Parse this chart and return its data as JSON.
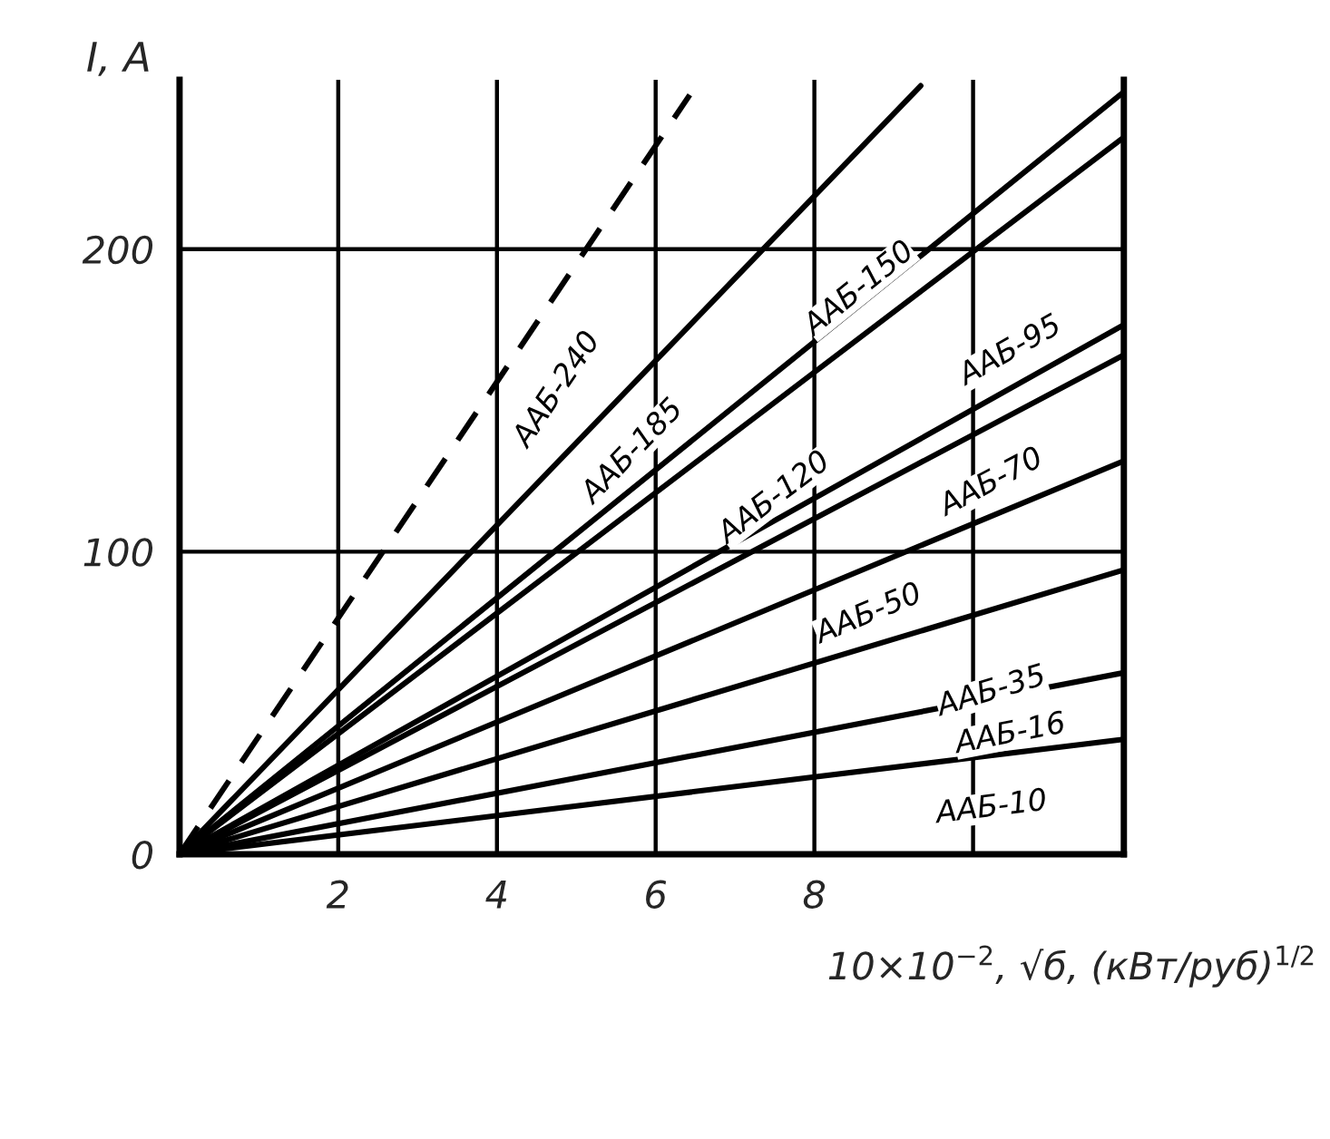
{
  "chart_data": {
    "type": "line",
    "xlabel": "10×10$^{−2}$, √б, (кВт/руб)$^{1/2}$",
    "ylabel": "I, A",
    "xlim": [
      0,
      11.9
    ],
    "ylim": [
      0,
      256
    ],
    "xticks": [
      2,
      4,
      6,
      8,
      {
        "value": 10,
        "label": null
      }
    ],
    "yticks": [
      0,
      100,
      200
    ],
    "grid": true,
    "legend": false,
    "marker": "none",
    "series": [
      {
        "name": "ААБ-240",
        "color": "#000000",
        "line_style": "dashed",
        "x": [
          0,
          6.43
        ],
        "values": [
          0,
          251
        ]
      },
      {
        "name": "ААБ-185",
        "color": "#000000",
        "line_style": "solid",
        "x": [
          0,
          9.34
        ],
        "values": [
          0,
          254
        ]
      },
      {
        "name": "ААБ-150",
        "color": "#000000",
        "line_style": "solid",
        "x": [
          0,
          11.9
        ],
        "values": [
          0,
          252
        ]
      },
      {
        "name": "ААБ-120",
        "color": "#000000",
        "line_style": "solid",
        "x": [
          0,
          11.9
        ],
        "values": [
          0,
          237
        ]
      },
      {
        "name": "ААБ-95",
        "color": "#000000",
        "line_style": "solid",
        "x": [
          0,
          11.9
        ],
        "values": [
          0,
          175
        ]
      },
      {
        "name": "ААБ-70",
        "color": "#000000",
        "line_style": "solid",
        "x": [
          0,
          11.9
        ],
        "values": [
          0,
          165
        ]
      },
      {
        "name": "ААБ-50",
        "color": "#000000",
        "line_style": "solid",
        "x": [
          0,
          11.9
        ],
        "values": [
          0,
          130
        ]
      },
      {
        "name": "ААБ-35",
        "color": "#000000",
        "line_style": "solid",
        "x": [
          0,
          11.9
        ],
        "values": [
          0,
          94
        ]
      },
      {
        "name": "ААБ-16",
        "color": "#000000",
        "line_style": "solid",
        "x": [
          0,
          11.9
        ],
        "values": [
          0,
          60
        ]
      },
      {
        "name": "ААБ-10",
        "color": "#000000",
        "line_style": "solid",
        "x": [
          0,
          11.9
        ],
        "values": [
          0,
          38
        ]
      }
    ]
  }
}
